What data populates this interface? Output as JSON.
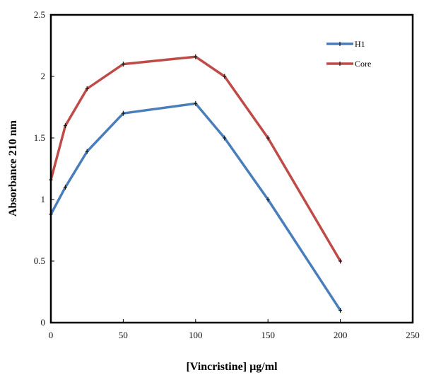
{
  "chart_data": {
    "type": "line",
    "title": "",
    "xlabel": "[Vincristine] µg/ml",
    "ylabel": "Absorbance 210 nm",
    "xlim": [
      0,
      250
    ],
    "ylim": [
      0,
      2.5
    ],
    "xticks": [
      "0",
      "50",
      "100",
      "150",
      "200",
      "250"
    ],
    "yticks": [
      "0",
      "0.5",
      "1",
      "1.5",
      "2",
      "2.5"
    ],
    "grid": false,
    "legend_position": "top-right",
    "series": [
      {
        "name": "H1",
        "color": "#4a7ebb",
        "x": [
          0,
          10,
          25,
          50,
          100,
          120,
          150,
          200
        ],
        "y": [
          0.88,
          1.1,
          1.39,
          1.7,
          1.78,
          1.5,
          1.0,
          0.1
        ]
      },
      {
        "name": "Core",
        "color": "#be4b48",
        "x": [
          0,
          10,
          25,
          50,
          100,
          120,
          150,
          200
        ],
        "y": [
          1.16,
          1.6,
          1.9,
          2.1,
          2.16,
          2.0,
          1.5,
          0.5
        ]
      }
    ]
  }
}
